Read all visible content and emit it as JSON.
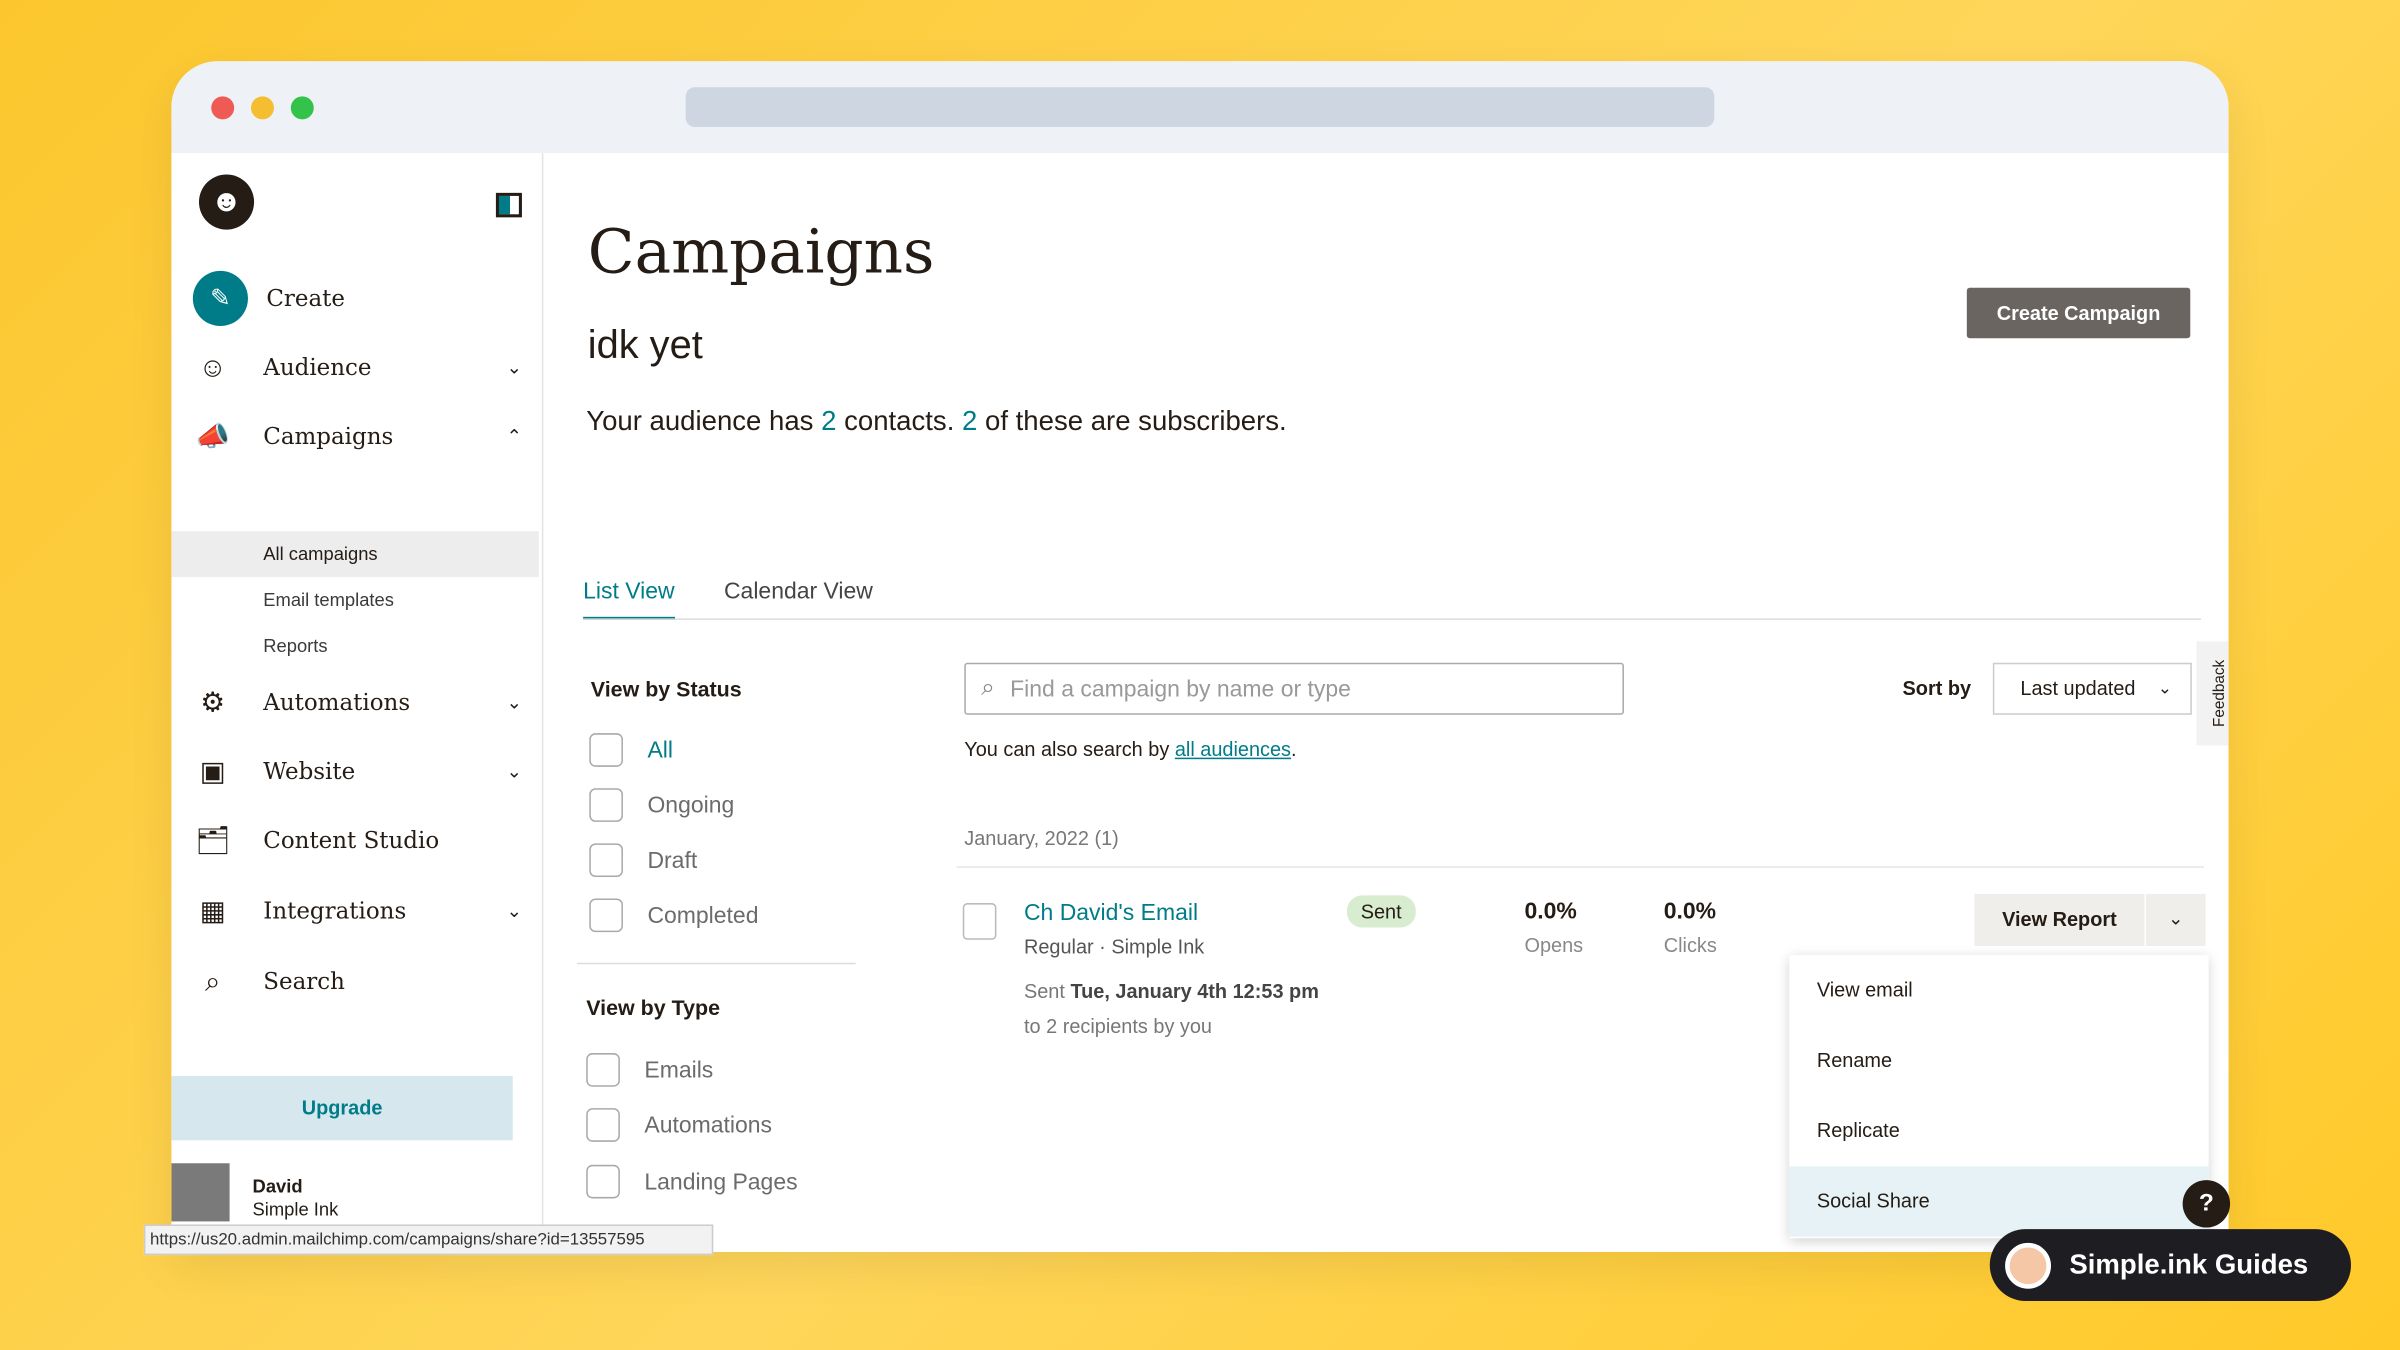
{
  "browser": {
    "status_url": "https://us20.admin.mailchimp.com/campaigns/share?id=13557595"
  },
  "sidebar": {
    "create": "Create",
    "items": [
      {
        "label": "Audience",
        "icon": "audience-icon"
      },
      {
        "label": "Campaigns",
        "icon": "megaphone-icon"
      },
      {
        "label": "Automations",
        "icon": "automations-icon"
      },
      {
        "label": "Website",
        "icon": "website-icon"
      },
      {
        "label": "Content Studio",
        "icon": "content-studio-icon"
      },
      {
        "label": "Integrations",
        "icon": "integrations-icon"
      },
      {
        "label": "Search",
        "icon": "search-icon"
      }
    ],
    "campaign_sub": [
      "All campaigns",
      "Email templates",
      "Reports"
    ],
    "upgrade": "Upgrade",
    "user": {
      "name": "David",
      "org": "Simple Ink"
    }
  },
  "header": {
    "title": "Campaigns",
    "audience_name": "idk yet",
    "summary_pre": "Your audience has ",
    "contacts": "2",
    "summary_mid": " contacts. ",
    "subscribers": "2",
    "summary_post": " of these are subscribers.",
    "create_button": "Create Campaign"
  },
  "tabs": [
    "List View",
    "Calendar View"
  ],
  "filters": {
    "status_title": "View by Status",
    "status": [
      "All",
      "Ongoing",
      "Draft",
      "Completed"
    ],
    "type_title": "View by Type",
    "types": [
      "Emails",
      "Automations",
      "Landing Pages"
    ]
  },
  "search": {
    "placeholder": "Find a campaign by name or type",
    "hint_pre": "You can also search by ",
    "hint_link": "all audiences",
    "hint_post": "."
  },
  "sort": {
    "label": "Sort by",
    "value": "Last updated"
  },
  "feedback": "Feedback",
  "group": "January, 2022 (1)",
  "campaign": {
    "name": "Ch David's Email",
    "meta": "Regular · Simple Ink",
    "status": "Sent",
    "opens": "0.0%",
    "opens_label": "Opens",
    "clicks": "0.0%",
    "clicks_label": "Clicks",
    "sent_pre": "Sent ",
    "sent_date": "Tue, January 4th 12:53 pm",
    "recipients": "to 2 recipients by you",
    "view_report": "View Report"
  },
  "dropdown": [
    "View email",
    "Rename",
    "Replicate",
    "Social Share"
  ],
  "help": "?",
  "badge": "Simple.ink Guides",
  "colors": {
    "accent": "#007c89",
    "button_dark": "#6b6561",
    "sent_badge": "#d8ecd0",
    "upgrade_bg": "#d6e8ee",
    "hover": "#e6f2f5"
  }
}
